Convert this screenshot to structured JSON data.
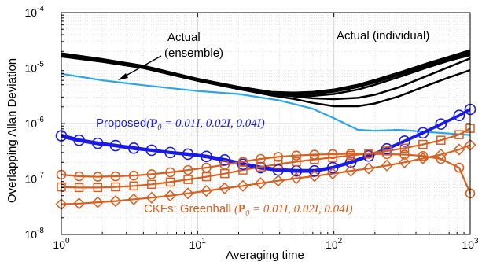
{
  "chart_data": {
    "type": "line",
    "xscale": "log",
    "yscale": "log",
    "xlim": [
      1,
      1000
    ],
    "ylim": [
      1e-08,
      0.0001
    ],
    "xlabel": "Averaging time",
    "ylabel": "Overlapping Allan Deviation",
    "x_ticks": [
      {
        "value": 1,
        "mantissa": "10",
        "exp": "0"
      },
      {
        "value": 10,
        "mantissa": "10",
        "exp": "1"
      },
      {
        "value": 100,
        "mantissa": "10",
        "exp": "2"
      },
      {
        "value": 1000,
        "mantissa": "10",
        "exp": "3"
      }
    ],
    "y_ticks": [
      {
        "value": 1e-08,
        "mantissa": "10",
        "exp": "-8"
      },
      {
        "value": 1e-07,
        "mantissa": "10",
        "exp": "-7"
      },
      {
        "value": 1e-06,
        "mantissa": "10",
        "exp": "-6"
      },
      {
        "value": 1e-05,
        "mantissa": "10",
        "exp": "-5"
      },
      {
        "value": 0.0001,
        "mantissa": "10",
        "exp": "-4"
      }
    ],
    "grid": true,
    "colors": {
      "actual": "#000000",
      "ensemble": "#2aa6e8",
      "proposed": "#1a1ae6",
      "ckf": "#d95f1e"
    },
    "series": [
      {
        "group": "actual",
        "marker": "none",
        "x": [
          1,
          2,
          4,
          10,
          20,
          35,
          50,
          70,
          100,
          150,
          200,
          300,
          500,
          700,
          1000
        ],
        "y": [
          1.85e-05,
          1.45e-05,
          1.1e-05,
          6.4e-06,
          4.6e-06,
          3.7e-06,
          3.6e-06,
          3.7e-06,
          4.1e-06,
          5e-06,
          6.1e-06,
          8.3e-06,
          1.25e-05,
          1.6e-05,
          2.1e-05
        ]
      },
      {
        "group": "actual",
        "marker": "none",
        "x": [
          1,
          2,
          4,
          10,
          20,
          35,
          50,
          70,
          100,
          150,
          200,
          300,
          500,
          700,
          1000
        ],
        "y": [
          1.78e-05,
          1.4e-05,
          1.07e-05,
          6.2e-06,
          4.4e-06,
          3.55e-06,
          3.45e-06,
          3.55e-06,
          3.9e-06,
          4.8e-06,
          5.8e-06,
          7.9e-06,
          1.2e-05,
          1.55e-05,
          2e-05
        ]
      },
      {
        "group": "actual",
        "marker": "none",
        "x": [
          1,
          2,
          4,
          10,
          20,
          35,
          50,
          70,
          100,
          150,
          200,
          300,
          500,
          700,
          1000
        ],
        "y": [
          1.7e-05,
          1.36e-05,
          1.04e-05,
          6e-06,
          4.3e-06,
          3.45e-06,
          3.35e-06,
          3.4e-06,
          3.75e-06,
          4.55e-06,
          5.5e-06,
          7.5e-06,
          1.13e-05,
          1.46e-05,
          1.85e-05
        ]
      },
      {
        "group": "actual",
        "marker": "none",
        "x": [
          1,
          2,
          4,
          10,
          20,
          35,
          50,
          70,
          100,
          150,
          200,
          300,
          500,
          700,
          1000
        ],
        "y": [
          1.62e-05,
          1.3e-05,
          1e-05,
          5.9e-06,
          4.2e-06,
          3.3e-06,
          3.15e-06,
          3.15e-06,
          3.4e-06,
          4.1e-06,
          5e-06,
          6.9e-06,
          1.05e-05,
          1.36e-05,
          1.72e-05
        ]
      },
      {
        "group": "actual",
        "marker": "none",
        "x": [
          1,
          2,
          4,
          10,
          20,
          35,
          50,
          70,
          100,
          150,
          200,
          300,
          500,
          700,
          1000
        ],
        "y": [
          1.75e-05,
          1.38e-05,
          1.05e-05,
          6.1e-06,
          4.35e-06,
          3.4e-06,
          3.1e-06,
          2.85e-06,
          2.75e-06,
          2.9e-06,
          3.3e-06,
          4.5e-06,
          7.5e-06,
          1.05e-05,
          1.5e-05
        ]
      },
      {
        "group": "actual",
        "marker": "none",
        "x": [
          1,
          2,
          4,
          10,
          20,
          35,
          50,
          70,
          100,
          150,
          200,
          300,
          500,
          700,
          1000
        ],
        "y": [
          1.72e-05,
          1.36e-05,
          1.03e-05,
          6e-06,
          4.2e-06,
          3.2e-06,
          2.8e-06,
          2.35e-06,
          2.05e-06,
          2.05e-06,
          2.3e-06,
          3.1e-06,
          5e-06,
          6.8e-06,
          9.2e-06
        ]
      },
      {
        "group": "ensemble",
        "marker": "none",
        "x": [
          1,
          2,
          4,
          10,
          20,
          40,
          70,
          100,
          150,
          200,
          300,
          500,
          700,
          1000
        ],
        "y": [
          7.9e-06,
          6e-06,
          4.9e-06,
          3.85e-06,
          3.4e-06,
          2.6e-06,
          1.85e-06,
          1.25e-06,
          7.7e-07,
          7.4e-07,
          7.7e-07,
          7e-07,
          6.6e-07,
          6.2e-07
        ]
      },
      {
        "group": "proposed",
        "marker": "circle",
        "x": [
          1,
          1.35,
          1.85,
          2.5,
          3.4,
          4.6,
          6.3,
          8.5,
          11.6,
          15.8,
          21.5,
          29,
          39,
          53,
          72,
          98,
          133,
          180,
          245,
          330,
          450,
          610,
          830,
          1000
        ],
        "y": [
          6e-07,
          5e-07,
          4.4e-07,
          4e-07,
          3.6e-07,
          3.3e-07,
          3e-07,
          2.8e-07,
          2.55e-07,
          2.2e-07,
          1.85e-07,
          1.6e-07,
          1.45e-07,
          1.4e-07,
          1.4e-07,
          1.6e-07,
          2e-07,
          2.6e-07,
          3.5e-07,
          4.8e-07,
          6.8e-07,
          9.8e-07,
          1.4e-06,
          1.8e-06
        ]
      },
      {
        "group": "proposed",
        "marker": "none",
        "x": [
          1,
          1.35,
          1.85,
          2.5,
          3.4,
          4.6,
          6.3,
          8.5,
          11.6,
          15.8,
          21.5,
          29,
          39,
          53,
          72,
          98,
          133,
          180,
          245,
          330,
          450,
          610,
          830,
          1000
        ],
        "y": [
          6.3e-07,
          5.2e-07,
          4.6e-07,
          4.15e-07,
          3.75e-07,
          3.4e-07,
          3.1e-07,
          2.9e-07,
          2.65e-07,
          2.3e-07,
          1.95e-07,
          1.68e-07,
          1.52e-07,
          1.46e-07,
          1.46e-07,
          1.66e-07,
          2.08e-07,
          2.7e-07,
          3.62e-07,
          4.95e-07,
          7e-07,
          1e-06,
          1.43e-06,
          1.86e-06
        ]
      },
      {
        "group": "proposed",
        "marker": "none",
        "x": [
          1,
          1.35,
          1.85,
          2.5,
          3.4,
          4.6,
          6.3,
          8.5,
          11.6,
          15.8,
          21.5,
          29,
          39,
          53,
          72,
          98,
          133,
          180,
          245,
          330,
          450,
          610,
          830,
          1000
        ],
        "y": [
          5.7e-07,
          4.8e-07,
          4.2e-07,
          3.85e-07,
          3.45e-07,
          3.2e-07,
          2.9e-07,
          2.7e-07,
          2.45e-07,
          2.1e-07,
          1.78e-07,
          1.53e-07,
          1.4e-07,
          1.34e-07,
          1.35e-07,
          1.55e-07,
          1.93e-07,
          2.5e-07,
          3.38e-07,
          4.65e-07,
          6.6e-07,
          9.5e-07,
          1.36e-06,
          1.75e-06
        ]
      },
      {
        "group": "ckf",
        "marker": "circle",
        "x": [
          1,
          1.35,
          1.85,
          2.5,
          3.4,
          4.6,
          6.3,
          8.5,
          11.6,
          15.8,
          21.5,
          29,
          39,
          53,
          72,
          98,
          133,
          180,
          245,
          330,
          450,
          610,
          830,
          1000
        ],
        "y": [
          1.2e-07,
          1.12e-07,
          1.1e-07,
          1.12e-07,
          1.15e-07,
          1.22e-07,
          1.32e-07,
          1.45e-07,
          1.6e-07,
          1.8e-07,
          2.05e-07,
          2.3e-07,
          2.5e-07,
          2.65e-07,
          2.75e-07,
          2.8e-07,
          2.85e-07,
          2.85e-07,
          2.8e-07,
          2.75e-07,
          2.6e-07,
          2.3e-07,
          1.6e-07,
          5.5e-08
        ]
      },
      {
        "group": "ckf",
        "marker": "square",
        "x": [
          1,
          1.35,
          1.85,
          2.5,
          3.4,
          4.6,
          6.3,
          8.5,
          11.6,
          15.8,
          21.5,
          29,
          39,
          53,
          72,
          98,
          133,
          180,
          245,
          330,
          450,
          610,
          830,
          1000
        ],
        "y": [
          7.2e-08,
          7e-08,
          7e-08,
          7.2e-08,
          7.5e-08,
          8e-08,
          8.8e-08,
          9.8e-08,
          1.1e-07,
          1.25e-07,
          1.45e-07,
          1.65e-07,
          1.85e-07,
          2.05e-07,
          2.25e-07,
          2.45e-07,
          2.65e-07,
          2.9e-07,
          3.2e-07,
          3.6e-07,
          4.2e-07,
          5e-07,
          6.3e-07,
          8.2e-07
        ]
      },
      {
        "group": "ckf",
        "marker": "diamond",
        "x": [
          1,
          1.35,
          1.85,
          2.5,
          3.4,
          4.6,
          6.3,
          8.5,
          11.6,
          15.8,
          21.5,
          29,
          39,
          53,
          72,
          98,
          133,
          180,
          245,
          330,
          450,
          610,
          830,
          1000
        ],
        "y": [
          3.5e-08,
          3.6e-08,
          3.8e-08,
          4e-08,
          4.3e-08,
          4.6e-08,
          5e-08,
          5.5e-08,
          6.1e-08,
          6.8e-08,
          7.5e-08,
          8.4e-08,
          9.3e-08,
          1.03e-07,
          1.13e-07,
          1.25e-07,
          1.4e-07,
          1.55e-07,
          1.75e-07,
          2e-07,
          2.35e-07,
          2.75e-07,
          3.4e-07,
          4.1e-07
        ]
      }
    ],
    "annotations": {
      "actual_individual": "Actual (individual)",
      "actual_ensemble_line1": "Actual",
      "actual_ensemble_line2": "(ensemble)",
      "proposed_prefix": "Proposed",
      "proposed_math_open": "(",
      "proposed_math_bold": "P",
      "proposed_math_sub": "0",
      "proposed_math_rest": " = 0.01I, 0.02I, 0.04I)",
      "ckf_prefix": "CKFs: Greenhall ",
      "ckf_math_open": "(",
      "ckf_math_bold": "P",
      "ckf_math_sub": "0",
      "ckf_math_rest": " = 0.01I, 0.02I, 0.04I)"
    }
  }
}
